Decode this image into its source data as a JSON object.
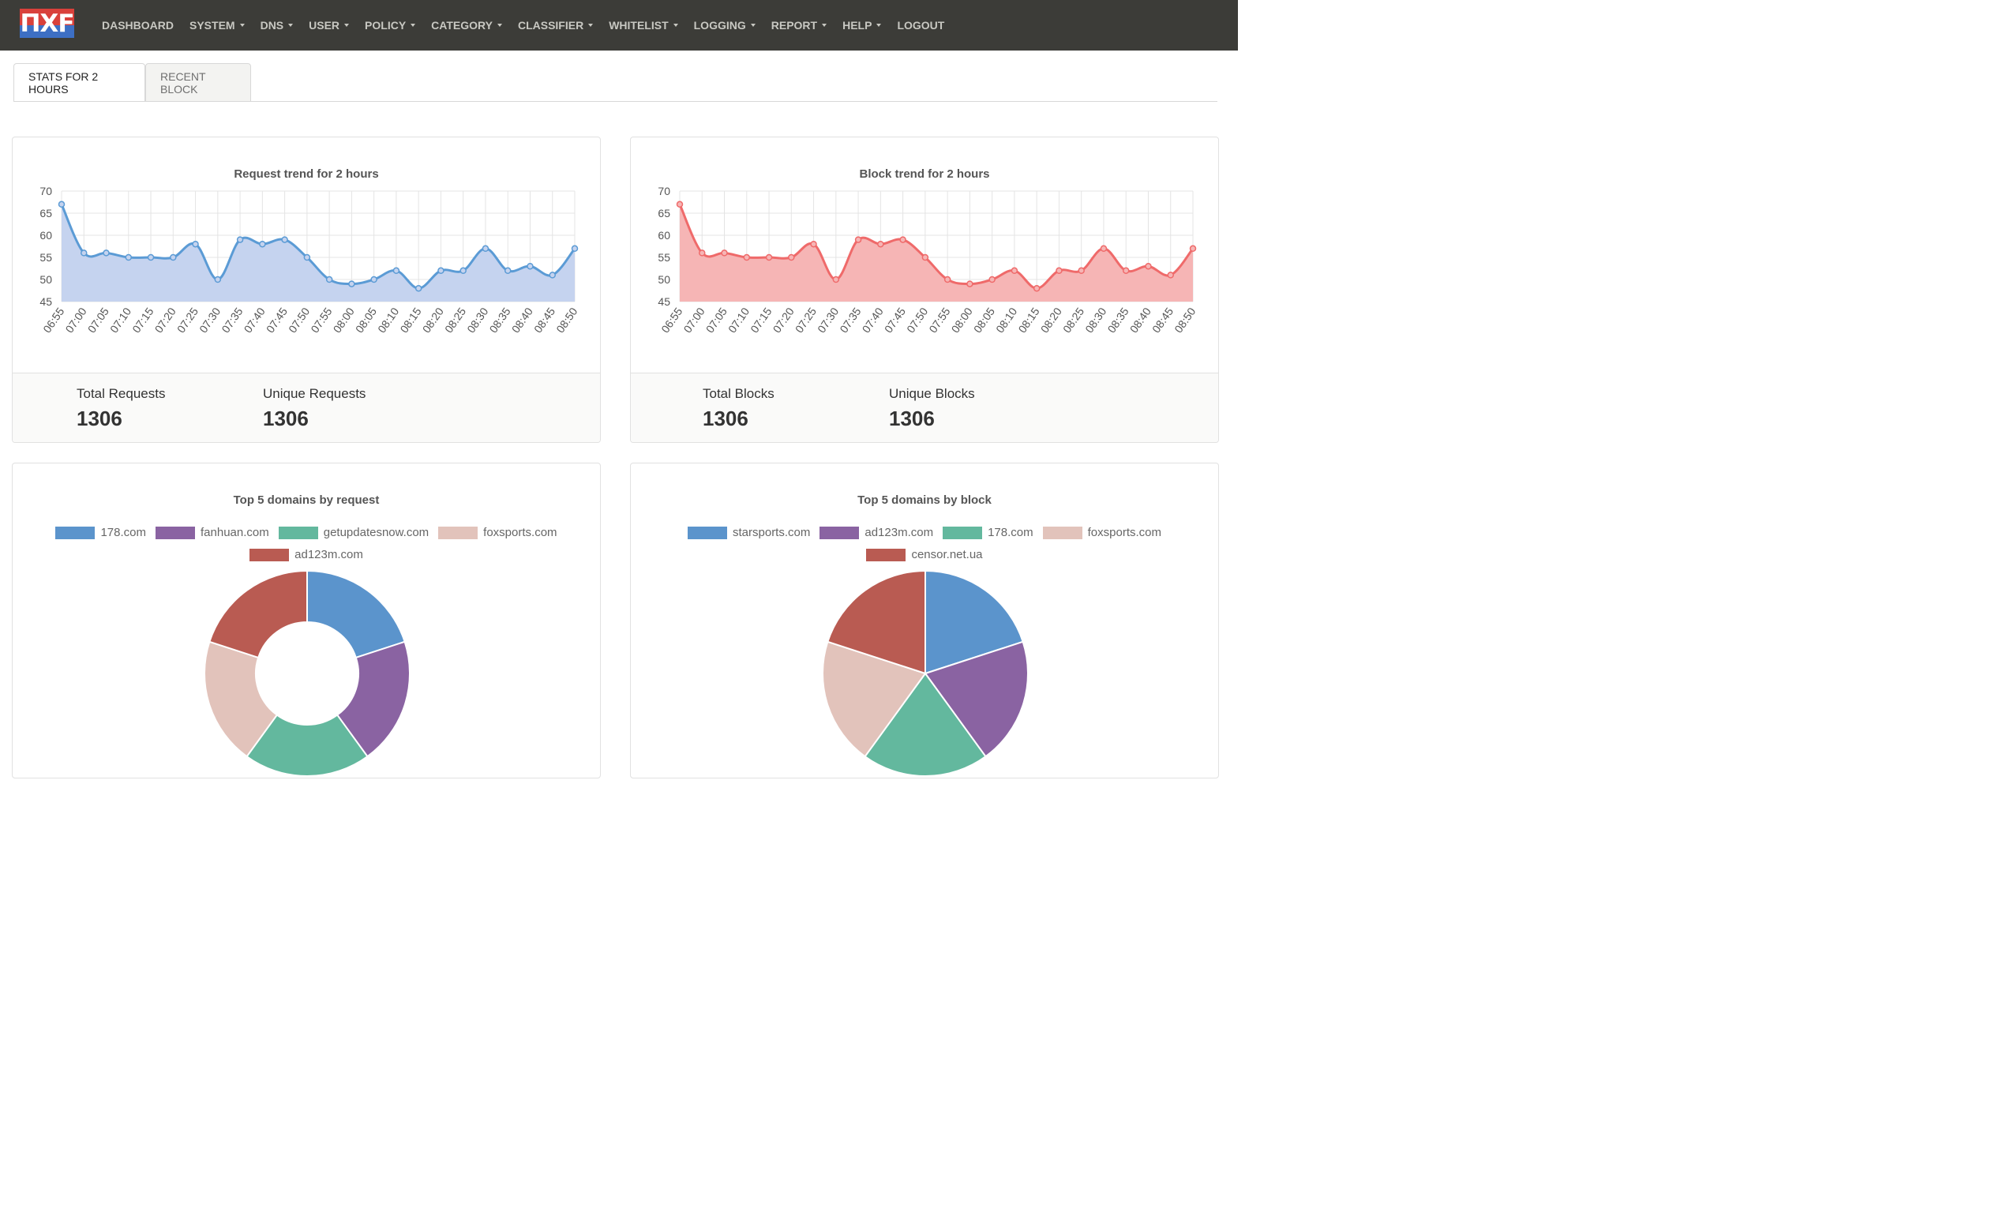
{
  "brand": {
    "logo_text": "ПXF"
  },
  "nav": [
    {
      "label": "DASHBOARD",
      "dropdown": false
    },
    {
      "label": "SYSTEM",
      "dropdown": true
    },
    {
      "label": "DNS",
      "dropdown": true
    },
    {
      "label": "USER",
      "dropdown": true
    },
    {
      "label": "POLICY",
      "dropdown": true
    },
    {
      "label": "CATEGORY",
      "dropdown": true
    },
    {
      "label": "CLASSIFIER",
      "dropdown": true
    },
    {
      "label": "WHITELIST",
      "dropdown": true
    },
    {
      "label": "LOGGING",
      "dropdown": true
    },
    {
      "label": "REPORT",
      "dropdown": true
    },
    {
      "label": "HELP",
      "dropdown": true
    },
    {
      "label": "LOGOUT",
      "dropdown": false
    }
  ],
  "tabs": [
    {
      "label": "STATS FOR 2 HOURS",
      "active": true
    },
    {
      "label": "RECENT BLOCK",
      "active": false
    }
  ],
  "request_panel": {
    "stat1_label": "Total Requests",
    "stat1_value": "1306",
    "stat2_label": "Unique Requests",
    "stat2_value": "1306"
  },
  "block_panel": {
    "stat1_label": "Total Blocks",
    "stat1_value": "1306",
    "stat2_label": "Unique Blocks",
    "stat2_value": "1306"
  },
  "chart_data": [
    {
      "type": "area",
      "title": "Request trend for 2 hours",
      "line_color": "#5b9bd5",
      "fill_color": "#c5d3ef",
      "x": [
        "06:55",
        "07:00",
        "07:05",
        "07:10",
        "07:15",
        "07:20",
        "07:25",
        "07:30",
        "07:35",
        "07:40",
        "07:45",
        "07:50",
        "07:55",
        "08:00",
        "08:05",
        "08:10",
        "08:15",
        "08:20",
        "08:25",
        "08:30",
        "08:35",
        "08:40",
        "08:45",
        "08:50"
      ],
      "values": [
        67,
        56,
        56,
        55,
        55,
        55,
        58,
        50,
        59,
        58,
        59,
        55,
        50,
        49,
        50,
        52,
        48,
        52,
        52,
        57,
        52,
        53,
        51,
        57
      ],
      "y_ticks": [
        45,
        50,
        55,
        60,
        65,
        70
      ],
      "ylim": [
        45,
        70
      ]
    },
    {
      "type": "area",
      "title": "Block trend for 2 hours",
      "line_color": "#ef6a6a",
      "fill_color": "#f6b5b5",
      "x": [
        "06:55",
        "07:00",
        "07:05",
        "07:10",
        "07:15",
        "07:20",
        "07:25",
        "07:30",
        "07:35",
        "07:40",
        "07:45",
        "07:50",
        "07:55",
        "08:00",
        "08:05",
        "08:10",
        "08:15",
        "08:20",
        "08:25",
        "08:30",
        "08:35",
        "08:40",
        "08:45",
        "08:50"
      ],
      "values": [
        67,
        56,
        56,
        55,
        55,
        55,
        58,
        50,
        59,
        58,
        59,
        55,
        50,
        49,
        50,
        52,
        48,
        52,
        52,
        57,
        52,
        53,
        51,
        57
      ],
      "y_ticks": [
        45,
        50,
        55,
        60,
        65,
        70
      ],
      "ylim": [
        45,
        70
      ]
    },
    {
      "type": "pie",
      "variant": "doughnut",
      "title": "Top 5 domains by request",
      "labels": [
        "178.com",
        "fanhuan.com",
        "getupdatesnow.com",
        "foxsports.com",
        "ad123m.com"
      ],
      "values": [
        20,
        20,
        20,
        20,
        20
      ],
      "colors": [
        "#5b94cc",
        "#8a63a2",
        "#63b89e",
        "#e2c3bb",
        "#b95b52"
      ]
    },
    {
      "type": "pie",
      "variant": "pie",
      "title": "Top 5 domains by block",
      "labels": [
        "starsports.com",
        "ad123m.com",
        "178.com",
        "foxsports.com",
        "censor.net.ua"
      ],
      "values": [
        20,
        20,
        20,
        20,
        20
      ],
      "colors": [
        "#5b94cc",
        "#8a63a2",
        "#63b89e",
        "#e2c3bb",
        "#b95b52"
      ]
    }
  ]
}
